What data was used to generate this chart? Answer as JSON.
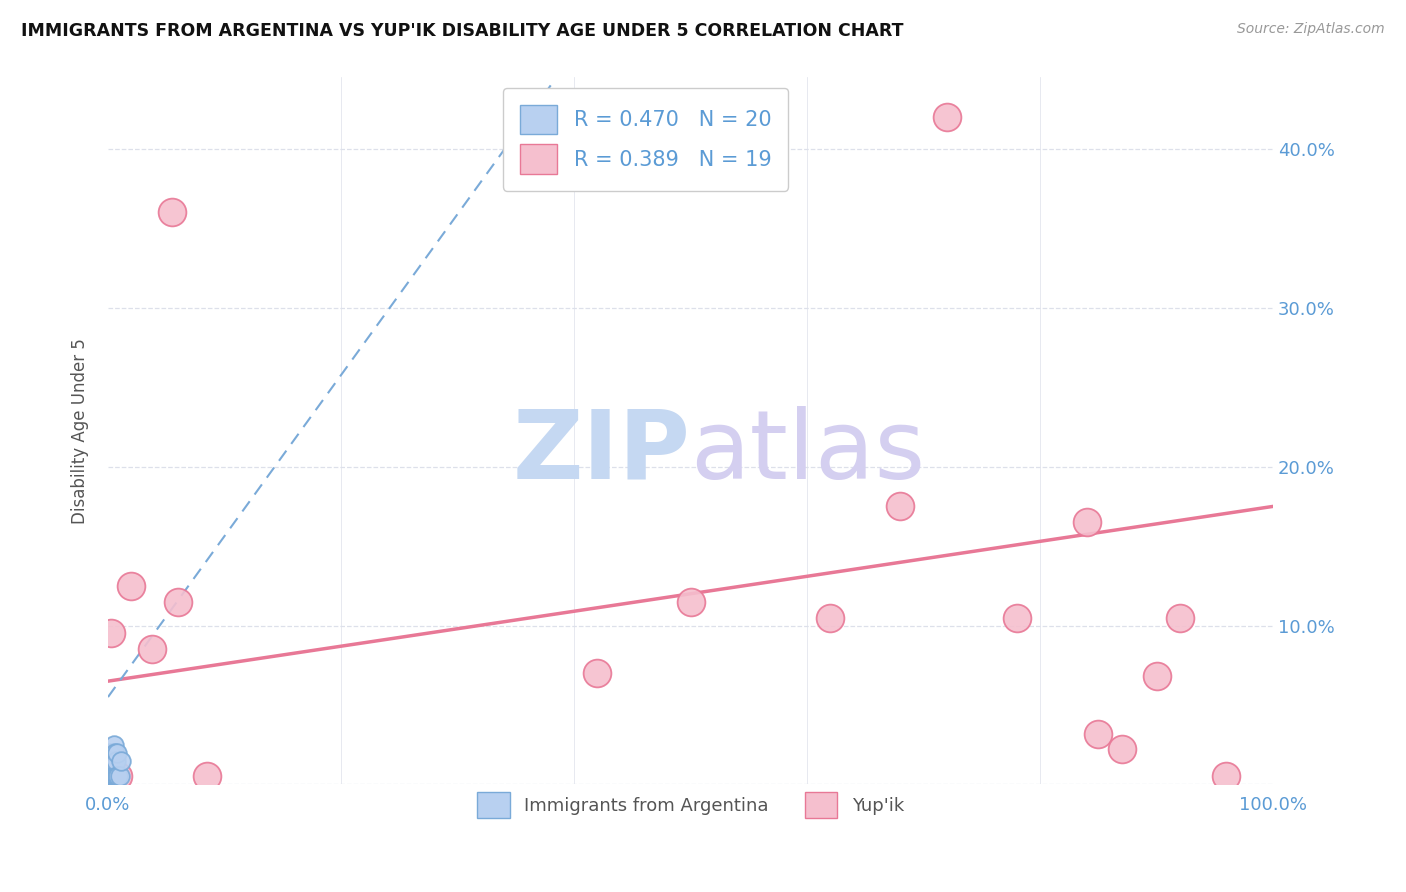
{
  "title": "IMMIGRANTS FROM ARGENTINA VS YUP'IK DISABILITY AGE UNDER 5 CORRELATION CHART",
  "source": "Source: ZipAtlas.com",
  "ylabel": "Disability Age Under 5",
  "xlim": [
    0.0,
    1.0
  ],
  "ylim": [
    0.0,
    0.445
  ],
  "xticks": [
    0.0,
    0.2,
    0.4,
    0.6,
    0.8,
    1.0
  ],
  "xticklabels": [
    "0.0%",
    "",
    "",
    "",
    "",
    "100.0%"
  ],
  "yticks": [
    0.0,
    0.1,
    0.2,
    0.3,
    0.4
  ],
  "yticklabels": [
    "",
    "10.0%",
    "20.0%",
    "30.0%",
    "40.0%"
  ],
  "argentina_fill": "#b8d0f0",
  "argentina_edge": "#7aaad8",
  "yupik_fill": "#f5bfce",
  "yupik_edge": "#e87896",
  "argentina_R": 0.47,
  "argentina_N": 20,
  "yupik_R": 0.389,
  "yupik_N": 19,
  "argentina_points_x": [
    0.001,
    0.001,
    0.002,
    0.002,
    0.003,
    0.003,
    0.004,
    0.004,
    0.005,
    0.005,
    0.005,
    0.006,
    0.006,
    0.007,
    0.007,
    0.008,
    0.008,
    0.009,
    0.01,
    0.011
  ],
  "argentina_points_y": [
    0.005,
    0.015,
    0.005,
    0.02,
    0.005,
    0.015,
    0.005,
    0.02,
    0.005,
    0.015,
    0.025,
    0.005,
    0.02,
    0.005,
    0.015,
    0.005,
    0.02,
    0.005,
    0.005,
    0.015
  ],
  "yupik_points_x": [
    0.003,
    0.009,
    0.02,
    0.038,
    0.055,
    0.06,
    0.085,
    0.42,
    0.5,
    0.62,
    0.68,
    0.72,
    0.78,
    0.84,
    0.85,
    0.87,
    0.9,
    0.92,
    0.96
  ],
  "yupik_points_y": [
    0.095,
    0.005,
    0.125,
    0.085,
    0.36,
    0.115,
    0.005,
    0.07,
    0.115,
    0.105,
    0.175,
    0.42,
    0.105,
    0.165,
    0.032,
    0.022,
    0.068,
    0.105,
    0.005
  ],
  "argentina_trend_x0": 0.0,
  "argentina_trend_y0": 0.055,
  "argentina_trend_x1": 0.38,
  "argentina_trend_y1": 0.44,
  "yupik_trend_x0": 0.0,
  "yupik_trend_y0": 0.065,
  "yupik_trend_x1": 1.0,
  "yupik_trend_y1": 0.175,
  "background_color": "#ffffff",
  "grid_color": "#dde0ea",
  "title_color": "#111111",
  "axis_color": "#5b9bd5",
  "legend_R_color": "#5b9bd5",
  "legend_N_color": "#5b9bd5",
  "watermark_zip_color": "#c5d8f2",
  "watermark_atlas_color": "#d4cff0"
}
